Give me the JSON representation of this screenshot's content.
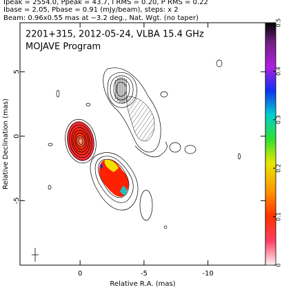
{
  "chart_data": {
    "type": "contour",
    "header": [
      "Ipeak = 2554.0, Ppeak = 43.7, I RMS = 0.20, P RMS = 0.22",
      "Ibase = 2.05, Pbase = 0.91 (mJy/beam), steps: x 2",
      "Beam: 0.96x0.55 mas at −3.2 deg., Nat. Wgt. (no taper)"
    ],
    "title": "2201+315, 2012-05-24, VLBA 15.4 GHz",
    "subtitle": "MOJAVE Program",
    "x_label": "Relative R.A. (mas)",
    "y_label": "Relative Declination (mas)",
    "xlim": [
      4.7,
      -14.5
    ],
    "xticks": [
      0,
      -5,
      -10
    ],
    "ylim": [
      -10,
      8.8
    ],
    "yticks": [
      5,
      0,
      -5
    ],
    "colorbar": {
      "lim": [
        0,
        0.5
      ],
      "ticks": [
        0,
        0.1,
        0.2,
        0.3,
        0.4,
        0.5
      ]
    }
  }
}
